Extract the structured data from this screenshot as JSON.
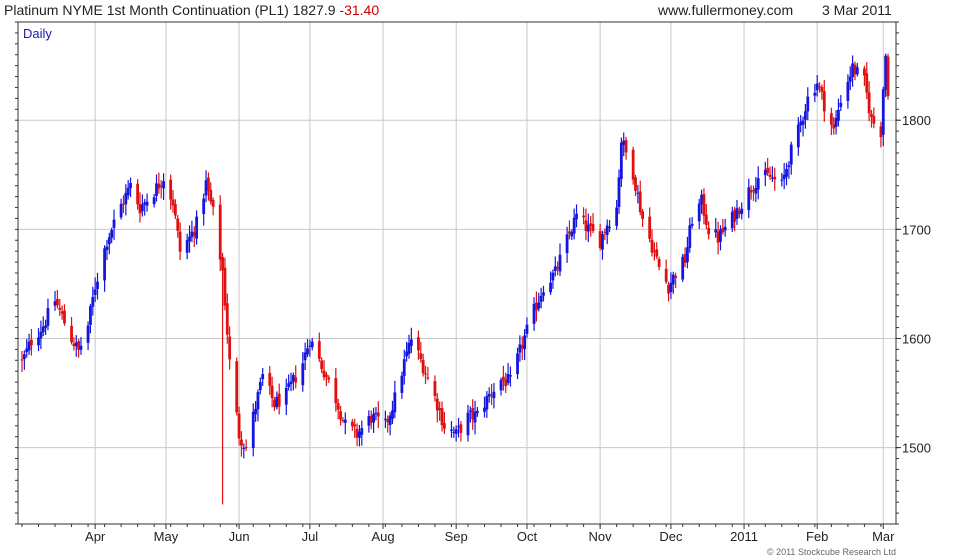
{
  "header": {
    "title": "Platinum NYME 1st Month Continuation (PL1)",
    "last": "1827.9",
    "change": "-31.40",
    "site": "www.fullermoney.com",
    "date": "3 Mar 2011"
  },
  "copyright": "© 2011 Stockcube Research Ltd",
  "colors": {
    "up": "#1515e0",
    "down": "#e01010",
    "grid": "#c8c8c8",
    "axis": "#333333"
  },
  "chart_data": {
    "type": "candlestick",
    "period_label": "Daily",
    "x_range": [
      "2010-03-01",
      "2011-03-03"
    ],
    "ylim": [
      1430,
      1890
    ],
    "yticks": [
      1500,
      1600,
      1700,
      1800
    ],
    "y_axis_position": "right",
    "grid": true,
    "x_tick_labels": [
      "Apr",
      "May",
      "Jun",
      "Jul",
      "Aug",
      "Sep",
      "Oct",
      "Nov",
      "Dec",
      "2011",
      "Feb",
      "Mar"
    ],
    "series": [
      {
        "close_anchors": [
          [
            "2010-03-01",
            1578
          ],
          [
            "2010-03-05",
            1598
          ],
          [
            "2010-03-10",
            1612
          ],
          [
            "2010-03-15",
            1635
          ],
          [
            "2010-03-18",
            1620
          ],
          [
            "2010-03-22",
            1600
          ],
          [
            "2010-03-25",
            1588
          ],
          [
            "2010-03-29",
            1612
          ],
          [
            "2010-04-01",
            1648
          ],
          [
            "2010-04-06",
            1690
          ],
          [
            "2010-04-12",
            1722
          ],
          [
            "2010-04-16",
            1740
          ],
          [
            "2010-04-20",
            1720
          ],
          [
            "2010-04-26",
            1735
          ],
          [
            "2010-04-30",
            1748
          ],
          [
            "2010-05-04",
            1725
          ],
          [
            "2010-05-07",
            1680
          ],
          [
            "2010-05-11",
            1692
          ],
          [
            "2010-05-14",
            1705
          ],
          [
            "2010-05-18",
            1742
          ],
          [
            "2010-05-21",
            1715
          ],
          [
            "2010-05-25",
            1662
          ],
          [
            "2010-05-28",
            1578
          ],
          [
            "2010-06-01",
            1512
          ],
          [
            "2010-06-04",
            1500
          ],
          [
            "2010-06-08",
            1538
          ],
          [
            "2010-06-11",
            1565
          ],
          [
            "2010-06-16",
            1540
          ],
          [
            "2010-06-21",
            1548
          ],
          [
            "2010-06-28",
            1578
          ],
          [
            "2010-07-01",
            1600
          ],
          [
            "2010-07-06",
            1575
          ],
          [
            "2010-07-12",
            1545
          ],
          [
            "2010-07-16",
            1520
          ],
          [
            "2010-07-21",
            1512
          ],
          [
            "2010-07-27",
            1528
          ],
          [
            "2010-08-02",
            1520
          ],
          [
            "2010-08-06",
            1545
          ],
          [
            "2010-08-10",
            1578
          ],
          [
            "2010-08-13",
            1600
          ],
          [
            "2010-08-18",
            1575
          ],
          [
            "2010-08-24",
            1540
          ],
          [
            "2010-08-27",
            1520
          ],
          [
            "2010-09-01",
            1512
          ],
          [
            "2010-09-06",
            1528
          ],
          [
            "2010-09-10",
            1530
          ],
          [
            "2010-09-15",
            1548
          ],
          [
            "2010-09-20",
            1562
          ],
          [
            "2010-09-24",
            1560
          ],
          [
            "2010-09-29",
            1595
          ],
          [
            "2010-10-04",
            1625
          ],
          [
            "2010-10-08",
            1648
          ],
          [
            "2010-10-13",
            1660
          ],
          [
            "2010-10-18",
            1690
          ],
          [
            "2010-10-22",
            1712
          ],
          [
            "2010-10-27",
            1700
          ],
          [
            "2010-11-01",
            1690
          ],
          [
            "2010-11-04",
            1705
          ],
          [
            "2010-11-08",
            1720
          ],
          [
            "2010-11-10",
            1782
          ],
          [
            "2010-11-15",
            1752
          ],
          [
            "2010-11-19",
            1710
          ],
          [
            "2010-11-23",
            1685
          ],
          [
            "2010-11-26",
            1665
          ],
          [
            "2010-11-30",
            1648
          ],
          [
            "2010-12-03",
            1660
          ],
          [
            "2010-12-07",
            1672
          ],
          [
            "2010-12-10",
            1710
          ],
          [
            "2010-12-14",
            1725
          ],
          [
            "2010-12-17",
            1700
          ],
          [
            "2010-12-21",
            1692
          ],
          [
            "2010-12-27",
            1710
          ],
          [
            "2011-01-03",
            1735
          ],
          [
            "2011-01-07",
            1748
          ],
          [
            "2011-01-12",
            1748
          ],
          [
            "2011-01-17",
            1740
          ],
          [
            "2011-01-20",
            1765
          ],
          [
            "2011-01-24",
            1790
          ],
          [
            "2011-01-28",
            1820
          ],
          [
            "2011-02-01",
            1835
          ],
          [
            "2011-02-04",
            1815
          ],
          [
            "2011-02-08",
            1790
          ],
          [
            "2011-02-11",
            1820
          ],
          [
            "2011-02-16",
            1848
          ],
          [
            "2011-02-21",
            1835
          ],
          [
            "2011-02-24",
            1800
          ],
          [
            "2011-02-28",
            1790
          ],
          [
            "2011-03-01",
            1830
          ],
          [
            "2011-03-02",
            1860
          ],
          [
            "2011-03-03",
            1827.9
          ]
        ],
        "low_extreme": [
          "2010-05-25",
          1448
        ]
      }
    ]
  }
}
